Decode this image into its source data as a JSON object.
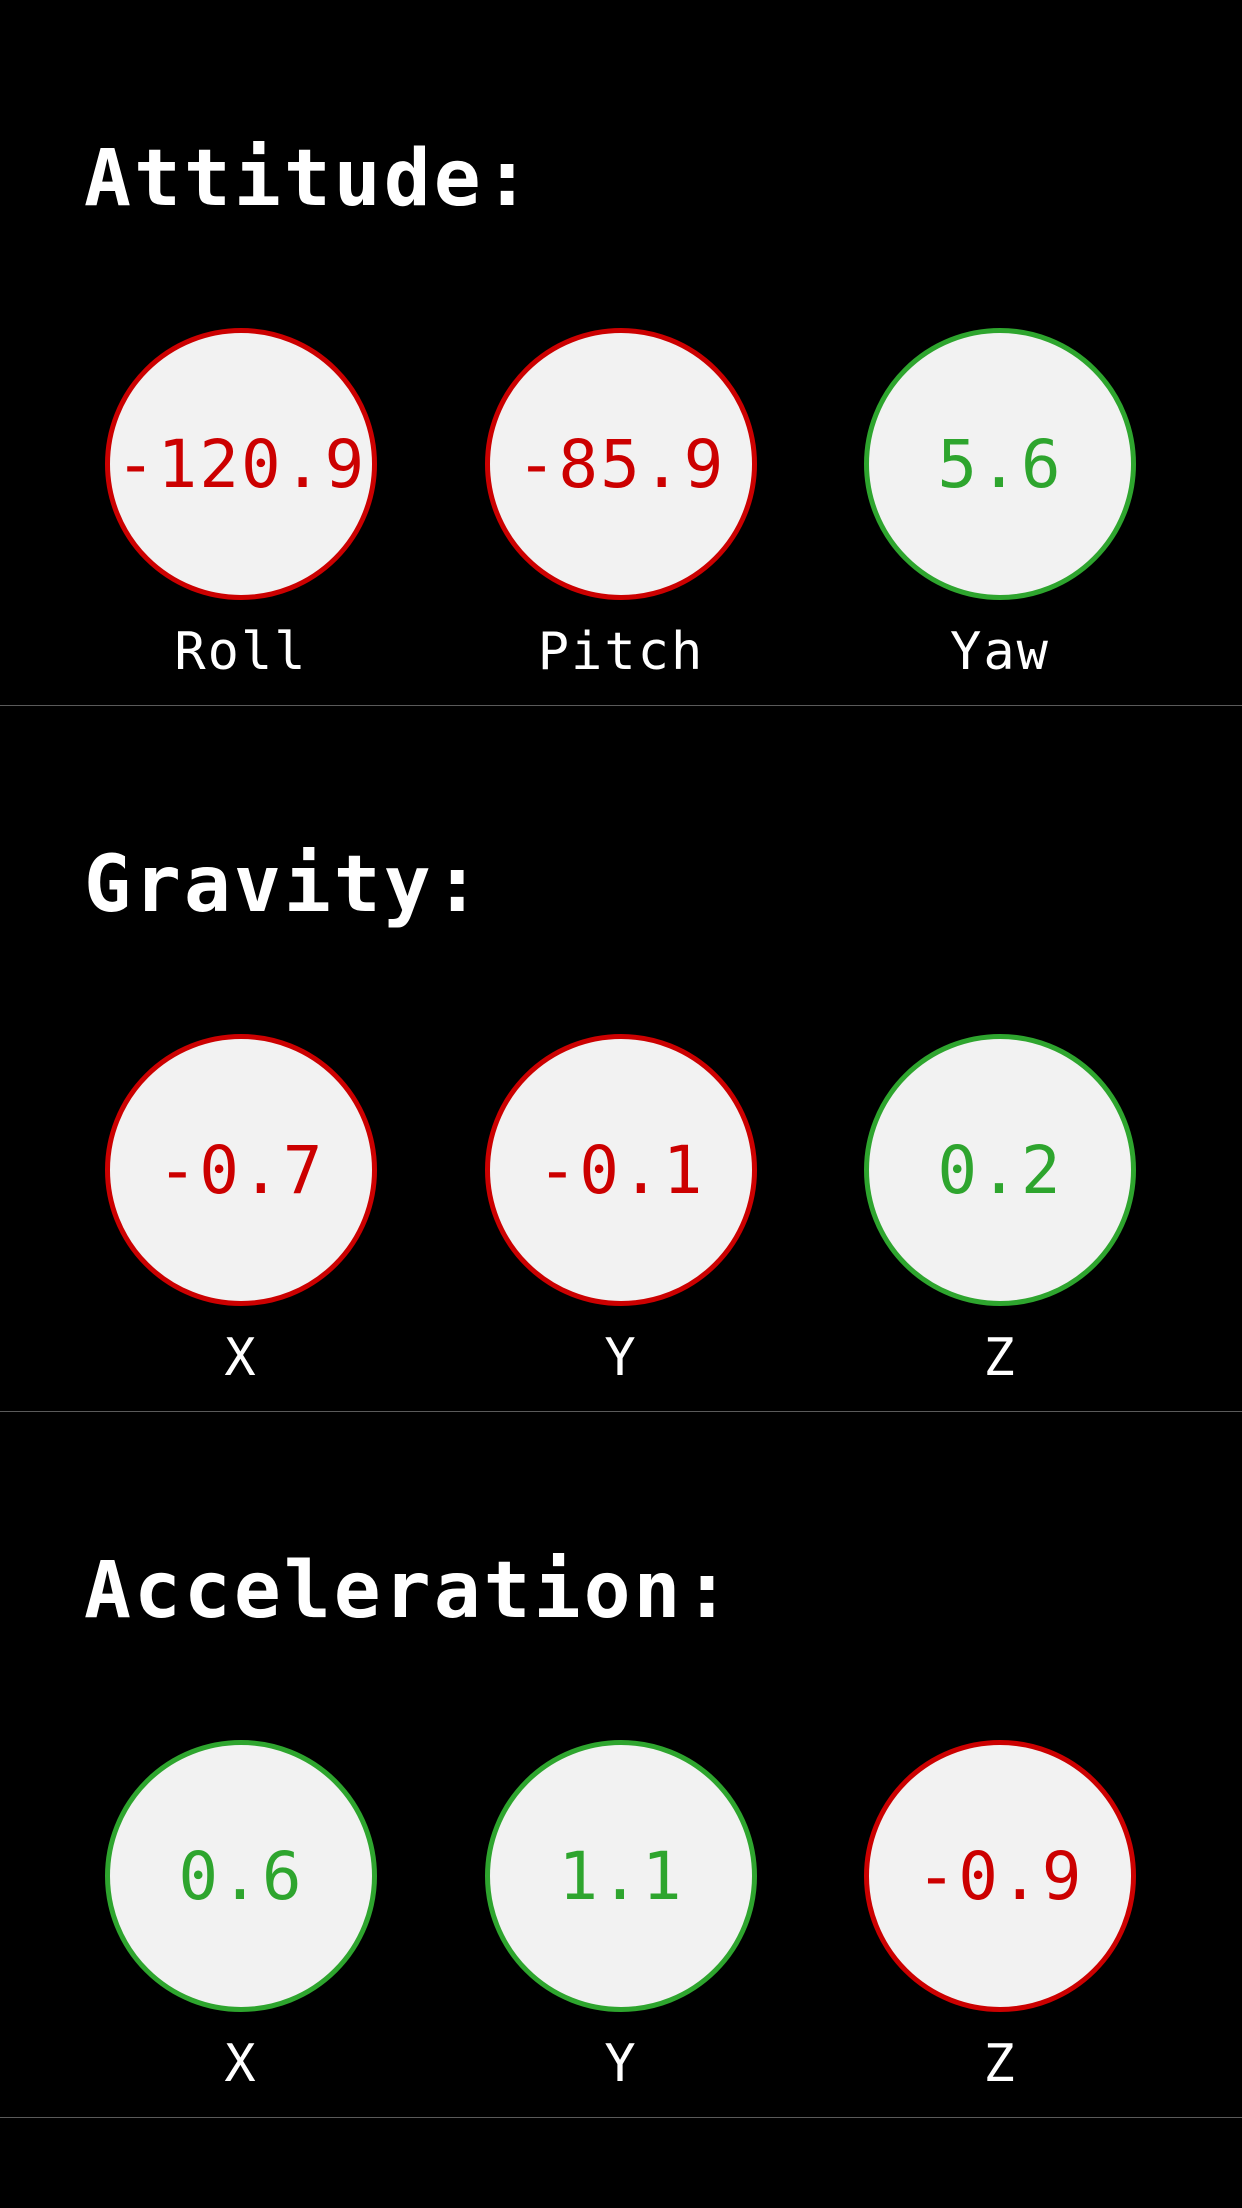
{
  "sections": [
    {
      "title": "Attitude:",
      "gauges": [
        {
          "label": "Roll",
          "value": "-120.9",
          "status": "negative"
        },
        {
          "label": "Pitch",
          "value": "-85.9",
          "status": "negative"
        },
        {
          "label": "Yaw",
          "value": "5.6",
          "status": "positive"
        }
      ]
    },
    {
      "title": "Gravity:",
      "gauges": [
        {
          "label": "X",
          "value": "-0.7",
          "status": "negative"
        },
        {
          "label": "Y",
          "value": "-0.1",
          "status": "negative"
        },
        {
          "label": "Z",
          "value": "0.2",
          "status": "positive"
        }
      ]
    },
    {
      "title": "Acceleration:",
      "gauges": [
        {
          "label": "X",
          "value": "0.6",
          "status": "positive"
        },
        {
          "label": "Y",
          "value": "1.1",
          "status": "positive"
        },
        {
          "label": "Z",
          "value": "-0.9",
          "status": "negative"
        }
      ]
    }
  ],
  "colors": {
    "background": "#000000",
    "negative": "#cc0000",
    "positive": "#2ea52e",
    "circle_fill": "#f2f2f2",
    "divider": "#5a5a5a",
    "text": "#ffffff"
  }
}
